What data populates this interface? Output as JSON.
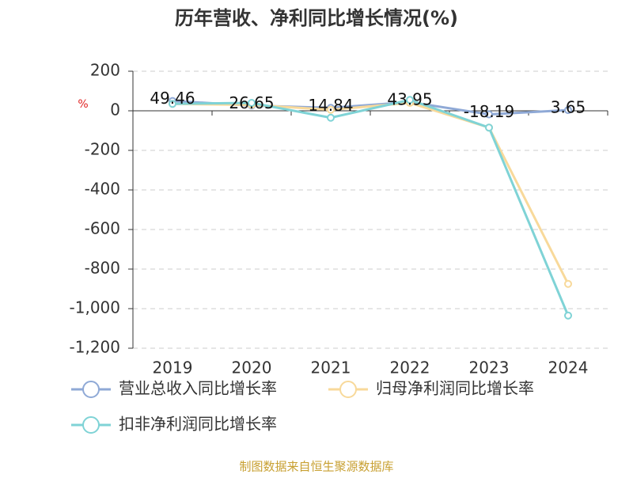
{
  "chart_data": {
    "type": "line",
    "title": "历年营收、净利同比增长情况(%)",
    "y_label": "%",
    "categories": [
      "2019",
      "2020",
      "2021",
      "2022",
      "2023",
      "2024"
    ],
    "series": [
      {
        "name": "营业总收入同比增长率",
        "color": "#8fa9d6",
        "values": [
          49.46,
          26.65,
          14.84,
          43.95,
          -18.19,
          3.65
        ],
        "show_labels": true
      },
      {
        "name": "归母净利润同比增长率",
        "color": "#f8d99a",
        "values": [
          35,
          30,
          5,
          40,
          -85,
          -875
        ],
        "show_labels": false
      },
      {
        "name": "扣非净利润同比增长率",
        "color": "#7fd3d6",
        "values": [
          35,
          40,
          -35,
          55,
          -85,
          -1035
        ],
        "show_labels": false
      }
    ],
    "ylim": [
      -1200,
      200
    ],
    "yticks": [
      200,
      0,
      -200,
      -400,
      -600,
      -800,
      {
        "value": -1000,
        "label": "-1,000"
      },
      {
        "value": -1200,
        "label": "-1,200"
      }
    ],
    "grid": true,
    "footer": "制图数据来自恒生聚源数据库"
  }
}
